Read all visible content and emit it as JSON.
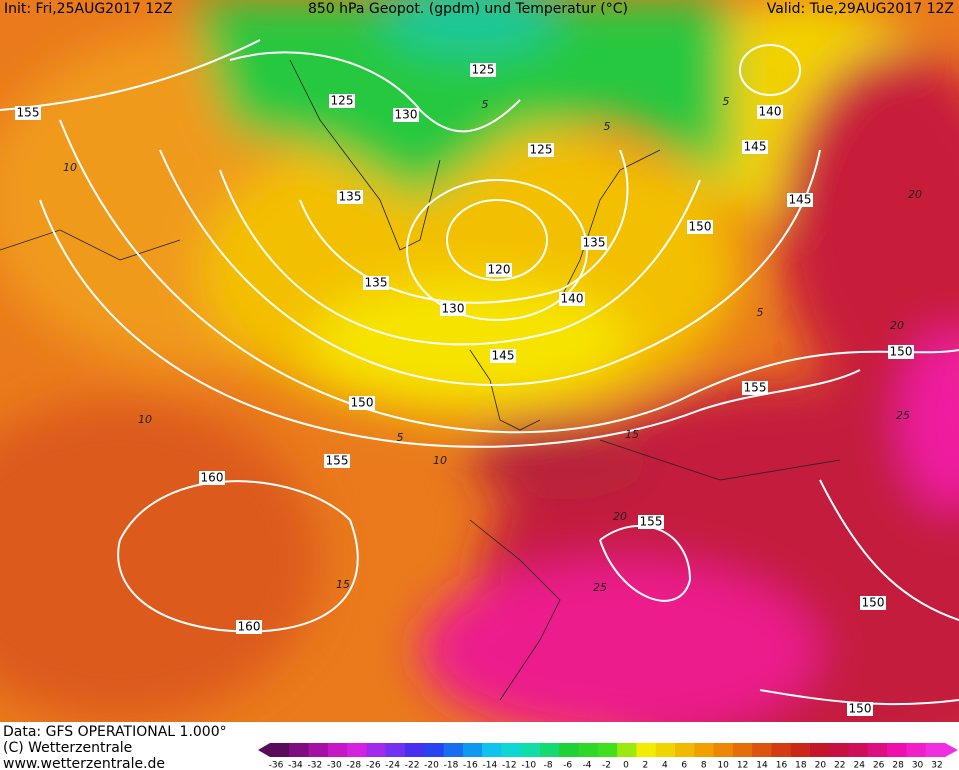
{
  "header": {
    "init": "Init: Fri,25AUG2017 12Z",
    "title": "850 hPa Geopot. (gpdm) und Temperatur (°C)",
    "valid": "Valid: Tue,29AUG2017 12Z"
  },
  "footer": {
    "data": "Data: GFS OPERATIONAL 1.000°",
    "copyright": "(C) Wetterzentrale",
    "url": "www.wetterzentrale.de"
  },
  "geopotential_labels": [
    155,
    125,
    130,
    125,
    125,
    140,
    145,
    135,
    145,
    150,
    135,
    120,
    135,
    140,
    130,
    145,
    150,
    150,
    155,
    155,
    160,
    155,
    150,
    160,
    150
  ],
  "temperature_labels": [
    10,
    5,
    10,
    15,
    20,
    25,
    15,
    20,
    20,
    25,
    10,
    5,
    5,
    5,
    5
  ],
  "colorbar": {
    "labels": [
      -36,
      -34,
      -32,
      -30,
      -28,
      -26,
      -24,
      -22,
      -20,
      -18,
      -16,
      -14,
      -12,
      -10,
      -8,
      -6,
      -4,
      -2,
      0,
      2,
      4,
      6,
      8,
      10,
      12,
      14,
      16,
      18,
      20,
      22,
      24,
      26,
      28,
      30,
      32
    ]
  }
}
